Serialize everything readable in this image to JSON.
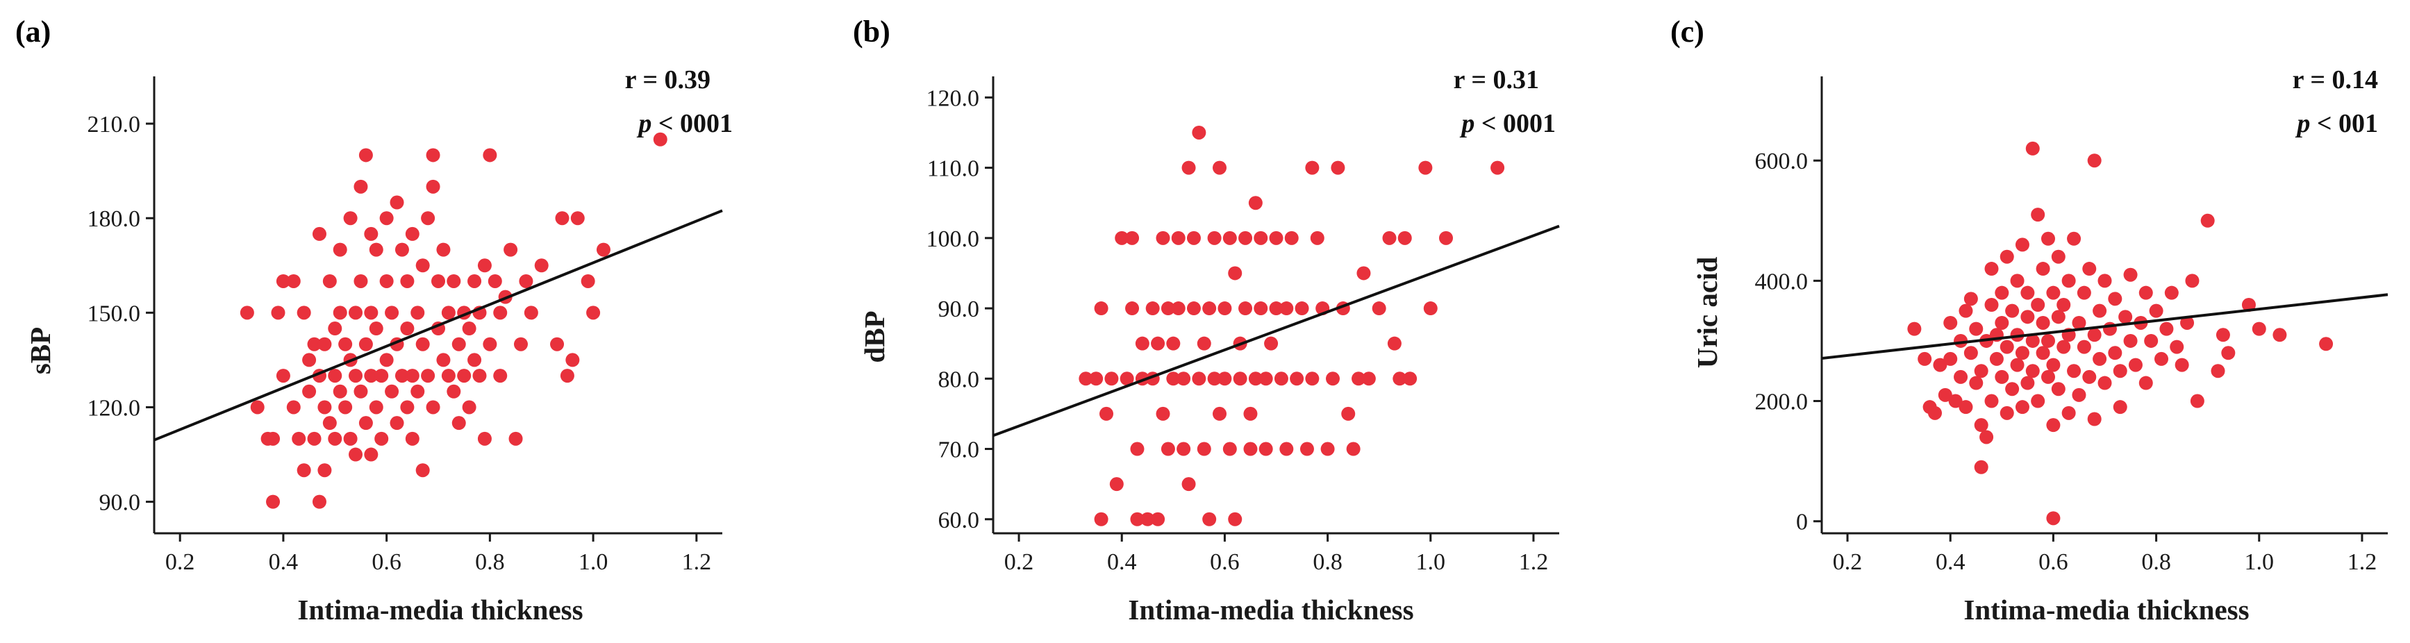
{
  "chart_data": [
    {
      "type": "scatter",
      "panel_label": "(a)",
      "xlabel": "Intima-media thickness",
      "ylabel": "sBP",
      "xlim": [
        0.15,
        1.25
      ],
      "ylim": [
        80,
        225
      ],
      "x_ticks": [
        0.2,
        0.4,
        0.6,
        0.8,
        1.0,
        1.2
      ],
      "x_tick_labels": [
        "0.2",
        "0.4",
        "0.6",
        "0.8",
        "1.0",
        "1.2"
      ],
      "y_ticks": [
        90,
        120,
        150,
        180,
        210
      ],
      "y_tick_labels": [
        "90.0",
        "120.0",
        "150.0",
        "180.0",
        "210.0"
      ],
      "stat_r": "r = 0.39",
      "stat_p_symbol": "p",
      "stat_p_value": " < 0001",
      "fit_line": {
        "x": [
          0.15,
          1.25
        ],
        "y": [
          109.6,
          182.4
        ]
      },
      "points": [
        [
          0.33,
          150
        ],
        [
          0.35,
          120
        ],
        [
          0.37,
          110
        ],
        [
          0.38,
          110
        ],
        [
          0.38,
          90
        ],
        [
          0.39,
          150
        ],
        [
          0.4,
          130
        ],
        [
          0.4,
          160
        ],
        [
          0.42,
          120
        ],
        [
          0.42,
          160
        ],
        [
          0.43,
          110
        ],
        [
          0.44,
          100
        ],
        [
          0.44,
          150
        ],
        [
          0.45,
          125
        ],
        [
          0.45,
          135
        ],
        [
          0.46,
          140
        ],
        [
          0.46,
          110
        ],
        [
          0.47,
          130
        ],
        [
          0.47,
          90
        ],
        [
          0.47,
          175
        ],
        [
          0.48,
          120
        ],
        [
          0.48,
          140
        ],
        [
          0.48,
          100
        ],
        [
          0.49,
          160
        ],
        [
          0.49,
          115
        ],
        [
          0.5,
          130
        ],
        [
          0.5,
          145
        ],
        [
          0.5,
          110
        ],
        [
          0.51,
          125
        ],
        [
          0.51,
          150
        ],
        [
          0.51,
          170
        ],
        [
          0.52,
          120
        ],
        [
          0.52,
          140
        ],
        [
          0.53,
          135
        ],
        [
          0.53,
          110
        ],
        [
          0.53,
          180
        ],
        [
          0.54,
          130
        ],
        [
          0.54,
          150
        ],
        [
          0.54,
          105
        ],
        [
          0.55,
          190
        ],
        [
          0.55,
          125
        ],
        [
          0.55,
          160
        ],
        [
          0.56,
          140
        ],
        [
          0.56,
          115
        ],
        [
          0.56,
          200
        ],
        [
          0.57,
          130
        ],
        [
          0.57,
          150
        ],
        [
          0.57,
          175
        ],
        [
          0.57,
          105
        ],
        [
          0.58,
          120
        ],
        [
          0.58,
          145
        ],
        [
          0.58,
          170
        ],
        [
          0.59,
          110
        ],
        [
          0.59,
          130
        ],
        [
          0.6,
          135
        ],
        [
          0.6,
          160
        ],
        [
          0.6,
          180
        ],
        [
          0.61,
          125
        ],
        [
          0.61,
          150
        ],
        [
          0.62,
          140
        ],
        [
          0.62,
          115
        ],
        [
          0.62,
          185
        ],
        [
          0.63,
          130
        ],
        [
          0.63,
          170
        ],
        [
          0.64,
          120
        ],
        [
          0.64,
          145
        ],
        [
          0.64,
          160
        ],
        [
          0.65,
          130
        ],
        [
          0.65,
          110
        ],
        [
          0.65,
          175
        ],
        [
          0.66,
          150
        ],
        [
          0.66,
          125
        ],
        [
          0.67,
          140
        ],
        [
          0.67,
          100
        ],
        [
          0.67,
          165
        ],
        [
          0.68,
          130
        ],
        [
          0.68,
          180
        ],
        [
          0.69,
          120
        ],
        [
          0.69,
          190
        ],
        [
          0.69,
          200
        ],
        [
          0.7,
          145
        ],
        [
          0.7,
          160
        ],
        [
          0.71,
          135
        ],
        [
          0.71,
          170
        ],
        [
          0.72,
          130
        ],
        [
          0.72,
          150
        ],
        [
          0.73,
          125
        ],
        [
          0.73,
          160
        ],
        [
          0.74,
          140
        ],
        [
          0.74,
          115
        ],
        [
          0.75,
          130
        ],
        [
          0.75,
          150
        ],
        [
          0.76,
          120
        ],
        [
          0.76,
          145
        ],
        [
          0.77,
          135
        ],
        [
          0.77,
          160
        ],
        [
          0.78,
          130
        ],
        [
          0.78,
          150
        ],
        [
          0.79,
          110
        ],
        [
          0.79,
          165
        ],
        [
          0.8,
          200
        ],
        [
          0.8,
          140
        ],
        [
          0.81,
          160
        ],
        [
          0.82,
          150
        ],
        [
          0.82,
          130
        ],
        [
          0.83,
          155
        ],
        [
          0.84,
          170
        ],
        [
          0.85,
          110
        ],
        [
          0.86,
          140
        ],
        [
          0.87,
          160
        ],
        [
          0.88,
          150
        ],
        [
          0.9,
          165
        ],
        [
          0.93,
          140
        ],
        [
          0.94,
          180
        ],
        [
          0.95,
          130
        ],
        [
          0.96,
          135
        ],
        [
          0.97,
          180
        ],
        [
          0.99,
          160
        ],
        [
          1.0,
          150
        ],
        [
          1.02,
          170
        ],
        [
          1.13,
          205
        ]
      ]
    },
    {
      "type": "scatter",
      "panel_label": "(b)",
      "xlabel": "Intima-media thickness",
      "ylabel": "dBP",
      "xlim": [
        0.15,
        1.25
      ],
      "ylim": [
        58,
        123
      ],
      "x_ticks": [
        0.2,
        0.4,
        0.6,
        0.8,
        1.0,
        1.2
      ],
      "x_tick_labels": [
        "0.2",
        "0.4",
        "0.6",
        "0.8",
        "1.0",
        "1.2"
      ],
      "y_ticks": [
        60,
        70,
        80,
        90,
        100,
        110,
        120
      ],
      "y_tick_labels": [
        "60.0",
        "70.0",
        "80.0",
        "90.0",
        "100.0",
        "110.0",
        "120.0"
      ],
      "stat_r": "r = 0.31",
      "stat_p_symbol": "p",
      "stat_p_value": " < 0001",
      "fit_line": {
        "x": [
          0.15,
          1.25
        ],
        "y": [
          71.9,
          101.7
        ]
      },
      "points": [
        [
          0.33,
          80
        ],
        [
          0.35,
          80
        ],
        [
          0.36,
          60
        ],
        [
          0.36,
          90
        ],
        [
          0.37,
          75
        ],
        [
          0.38,
          80
        ],
        [
          0.39,
          65
        ],
        [
          0.4,
          100
        ],
        [
          0.41,
          80
        ],
        [
          0.42,
          100
        ],
        [
          0.42,
          90
        ],
        [
          0.43,
          70
        ],
        [
          0.43,
          60
        ],
        [
          0.44,
          85
        ],
        [
          0.44,
          80
        ],
        [
          0.45,
          60
        ],
        [
          0.46,
          90
        ],
        [
          0.46,
          80
        ],
        [
          0.47,
          85
        ],
        [
          0.47,
          60
        ],
        [
          0.48,
          75
        ],
        [
          0.48,
          100
        ],
        [
          0.49,
          90
        ],
        [
          0.49,
          70
        ],
        [
          0.5,
          80
        ],
        [
          0.5,
          85
        ],
        [
          0.51,
          100
        ],
        [
          0.51,
          90
        ],
        [
          0.52,
          70
        ],
        [
          0.52,
          80
        ],
        [
          0.53,
          65
        ],
        [
          0.53,
          110
        ],
        [
          0.54,
          90
        ],
        [
          0.54,
          100
        ],
        [
          0.55,
          80
        ],
        [
          0.55,
          115
        ],
        [
          0.56,
          70
        ],
        [
          0.56,
          85
        ],
        [
          0.57,
          60
        ],
        [
          0.57,
          90
        ],
        [
          0.58,
          80
        ],
        [
          0.58,
          100
        ],
        [
          0.59,
          110
        ],
        [
          0.59,
          75
        ],
        [
          0.6,
          90
        ],
        [
          0.6,
          80
        ],
        [
          0.61,
          70
        ],
        [
          0.61,
          100
        ],
        [
          0.62,
          60
        ],
        [
          0.62,
          95
        ],
        [
          0.63,
          80
        ],
        [
          0.63,
          85
        ],
        [
          0.64,
          90
        ],
        [
          0.64,
          100
        ],
        [
          0.65,
          70
        ],
        [
          0.65,
          75
        ],
        [
          0.66,
          105
        ],
        [
          0.66,
          80
        ],
        [
          0.67,
          90
        ],
        [
          0.67,
          100
        ],
        [
          0.68,
          80
        ],
        [
          0.68,
          70
        ],
        [
          0.69,
          85
        ],
        [
          0.7,
          90
        ],
        [
          0.7,
          100
        ],
        [
          0.71,
          80
        ],
        [
          0.72,
          90
        ],
        [
          0.72,
          70
        ],
        [
          0.73,
          100
        ],
        [
          0.74,
          80
        ],
        [
          0.75,
          90
        ],
        [
          0.76,
          70
        ],
        [
          0.77,
          110
        ],
        [
          0.77,
          80
        ],
        [
          0.78,
          100
        ],
        [
          0.79,
          90
        ],
        [
          0.8,
          70
        ],
        [
          0.81,
          80
        ],
        [
          0.82,
          110
        ],
        [
          0.83,
          90
        ],
        [
          0.84,
          75
        ],
        [
          0.85,
          70
        ],
        [
          0.86,
          80
        ],
        [
          0.87,
          95
        ],
        [
          0.88,
          80
        ],
        [
          0.9,
          90
        ],
        [
          0.92,
          100
        ],
        [
          0.93,
          85
        ],
        [
          0.94,
          80
        ],
        [
          0.95,
          100
        ],
        [
          0.96,
          80
        ],
        [
          0.99,
          110
        ],
        [
          1.0,
          90
        ],
        [
          1.03,
          100
        ],
        [
          1.13,
          110
        ]
      ]
    },
    {
      "type": "scatter",
      "panel_label": "(c)",
      "xlabel": "Intima-media thickness",
      "ylabel": "Uric acid",
      "xlim": [
        0.15,
        1.25
      ],
      "ylim": [
        -20,
        740
      ],
      "x_ticks": [
        0.2,
        0.4,
        0.6,
        0.8,
        1.0,
        1.2
      ],
      "x_tick_labels": [
        "0.2",
        "0.4",
        "0.6",
        "0.8",
        "1.0",
        "1.2"
      ],
      "y_ticks": [
        0,
        200,
        400,
        600
      ],
      "y_tick_labels": [
        "0",
        "200.0",
        "400.0",
        "600.0"
      ],
      "stat_r": "r = 0.14",
      "stat_p_symbol": "p",
      "stat_p_value": " < 001",
      "fit_line": {
        "x": [
          0.15,
          1.25
        ],
        "y": [
          271,
          377
        ]
      },
      "points": [
        [
          0.33,
          320
        ],
        [
          0.35,
          270
        ],
        [
          0.36,
          190
        ],
        [
          0.37,
          180
        ],
        [
          0.38,
          260
        ],
        [
          0.39,
          210
        ],
        [
          0.4,
          330
        ],
        [
          0.4,
          270
        ],
        [
          0.41,
          200
        ],
        [
          0.42,
          300
        ],
        [
          0.42,
          240
        ],
        [
          0.43,
          350
        ],
        [
          0.43,
          190
        ],
        [
          0.44,
          280
        ],
        [
          0.44,
          370
        ],
        [
          0.45,
          230
        ],
        [
          0.45,
          320
        ],
        [
          0.46,
          160
        ],
        [
          0.46,
          250
        ],
        [
          0.46,
          90
        ],
        [
          0.47,
          300
        ],
        [
          0.47,
          140
        ],
        [
          0.48,
          360
        ],
        [
          0.48,
          200
        ],
        [
          0.48,
          420
        ],
        [
          0.49,
          270
        ],
        [
          0.49,
          310
        ],
        [
          0.5,
          240
        ],
        [
          0.5,
          380
        ],
        [
          0.5,
          330
        ],
        [
          0.51,
          180
        ],
        [
          0.51,
          290
        ],
        [
          0.51,
          440
        ],
        [
          0.52,
          220
        ],
        [
          0.52,
          350
        ],
        [
          0.53,
          260
        ],
        [
          0.53,
          400
        ],
        [
          0.53,
          310
        ],
        [
          0.54,
          190
        ],
        [
          0.54,
          460
        ],
        [
          0.54,
          280
        ],
        [
          0.55,
          340
        ],
        [
          0.55,
          230
        ],
        [
          0.55,
          380
        ],
        [
          0.56,
          620
        ],
        [
          0.56,
          300
        ],
        [
          0.56,
          250
        ],
        [
          0.57,
          510
        ],
        [
          0.57,
          360
        ],
        [
          0.57,
          200
        ],
        [
          0.58,
          280
        ],
        [
          0.58,
          420
        ],
        [
          0.58,
          330
        ],
        [
          0.59,
          240
        ],
        [
          0.59,
          470
        ],
        [
          0.59,
          300
        ],
        [
          0.6,
          160
        ],
        [
          0.6,
          5
        ],
        [
          0.6,
          380
        ],
        [
          0.6,
          260
        ],
        [
          0.61,
          340
        ],
        [
          0.61,
          440
        ],
        [
          0.61,
          220
        ],
        [
          0.62,
          290
        ],
        [
          0.62,
          360
        ],
        [
          0.63,
          180
        ],
        [
          0.63,
          400
        ],
        [
          0.63,
          310
        ],
        [
          0.64,
          250
        ],
        [
          0.64,
          470
        ],
        [
          0.65,
          330
        ],
        [
          0.65,
          210
        ],
        [
          0.66,
          380
        ],
        [
          0.66,
          290
        ],
        [
          0.67,
          240
        ],
        [
          0.67,
          420
        ],
        [
          0.68,
          600
        ],
        [
          0.68,
          310
        ],
        [
          0.68,
          170
        ],
        [
          0.69,
          350
        ],
        [
          0.69,
          270
        ],
        [
          0.7,
          230
        ],
        [
          0.7,
          400
        ],
        [
          0.71,
          320
        ],
        [
          0.72,
          280
        ],
        [
          0.72,
          370
        ],
        [
          0.73,
          250
        ],
        [
          0.73,
          190
        ],
        [
          0.74,
          340
        ],
        [
          0.75,
          300
        ],
        [
          0.75,
          410
        ],
        [
          0.76,
          260
        ],
        [
          0.77,
          330
        ],
        [
          0.78,
          380
        ],
        [
          0.78,
          230
        ],
        [
          0.79,
          300
        ],
        [
          0.8,
          350
        ],
        [
          0.81,
          270
        ],
        [
          0.82,
          320
        ],
        [
          0.83,
          380
        ],
        [
          0.84,
          290
        ],
        [
          0.85,
          260
        ],
        [
          0.86,
          330
        ],
        [
          0.87,
          400
        ],
        [
          0.88,
          200
        ],
        [
          0.9,
          500
        ],
        [
          0.92,
          250
        ],
        [
          0.93,
          310
        ],
        [
          0.94,
          280
        ],
        [
          0.98,
          360
        ],
        [
          1.0,
          320
        ],
        [
          1.04,
          310
        ],
        [
          1.13,
          295
        ]
      ]
    }
  ]
}
